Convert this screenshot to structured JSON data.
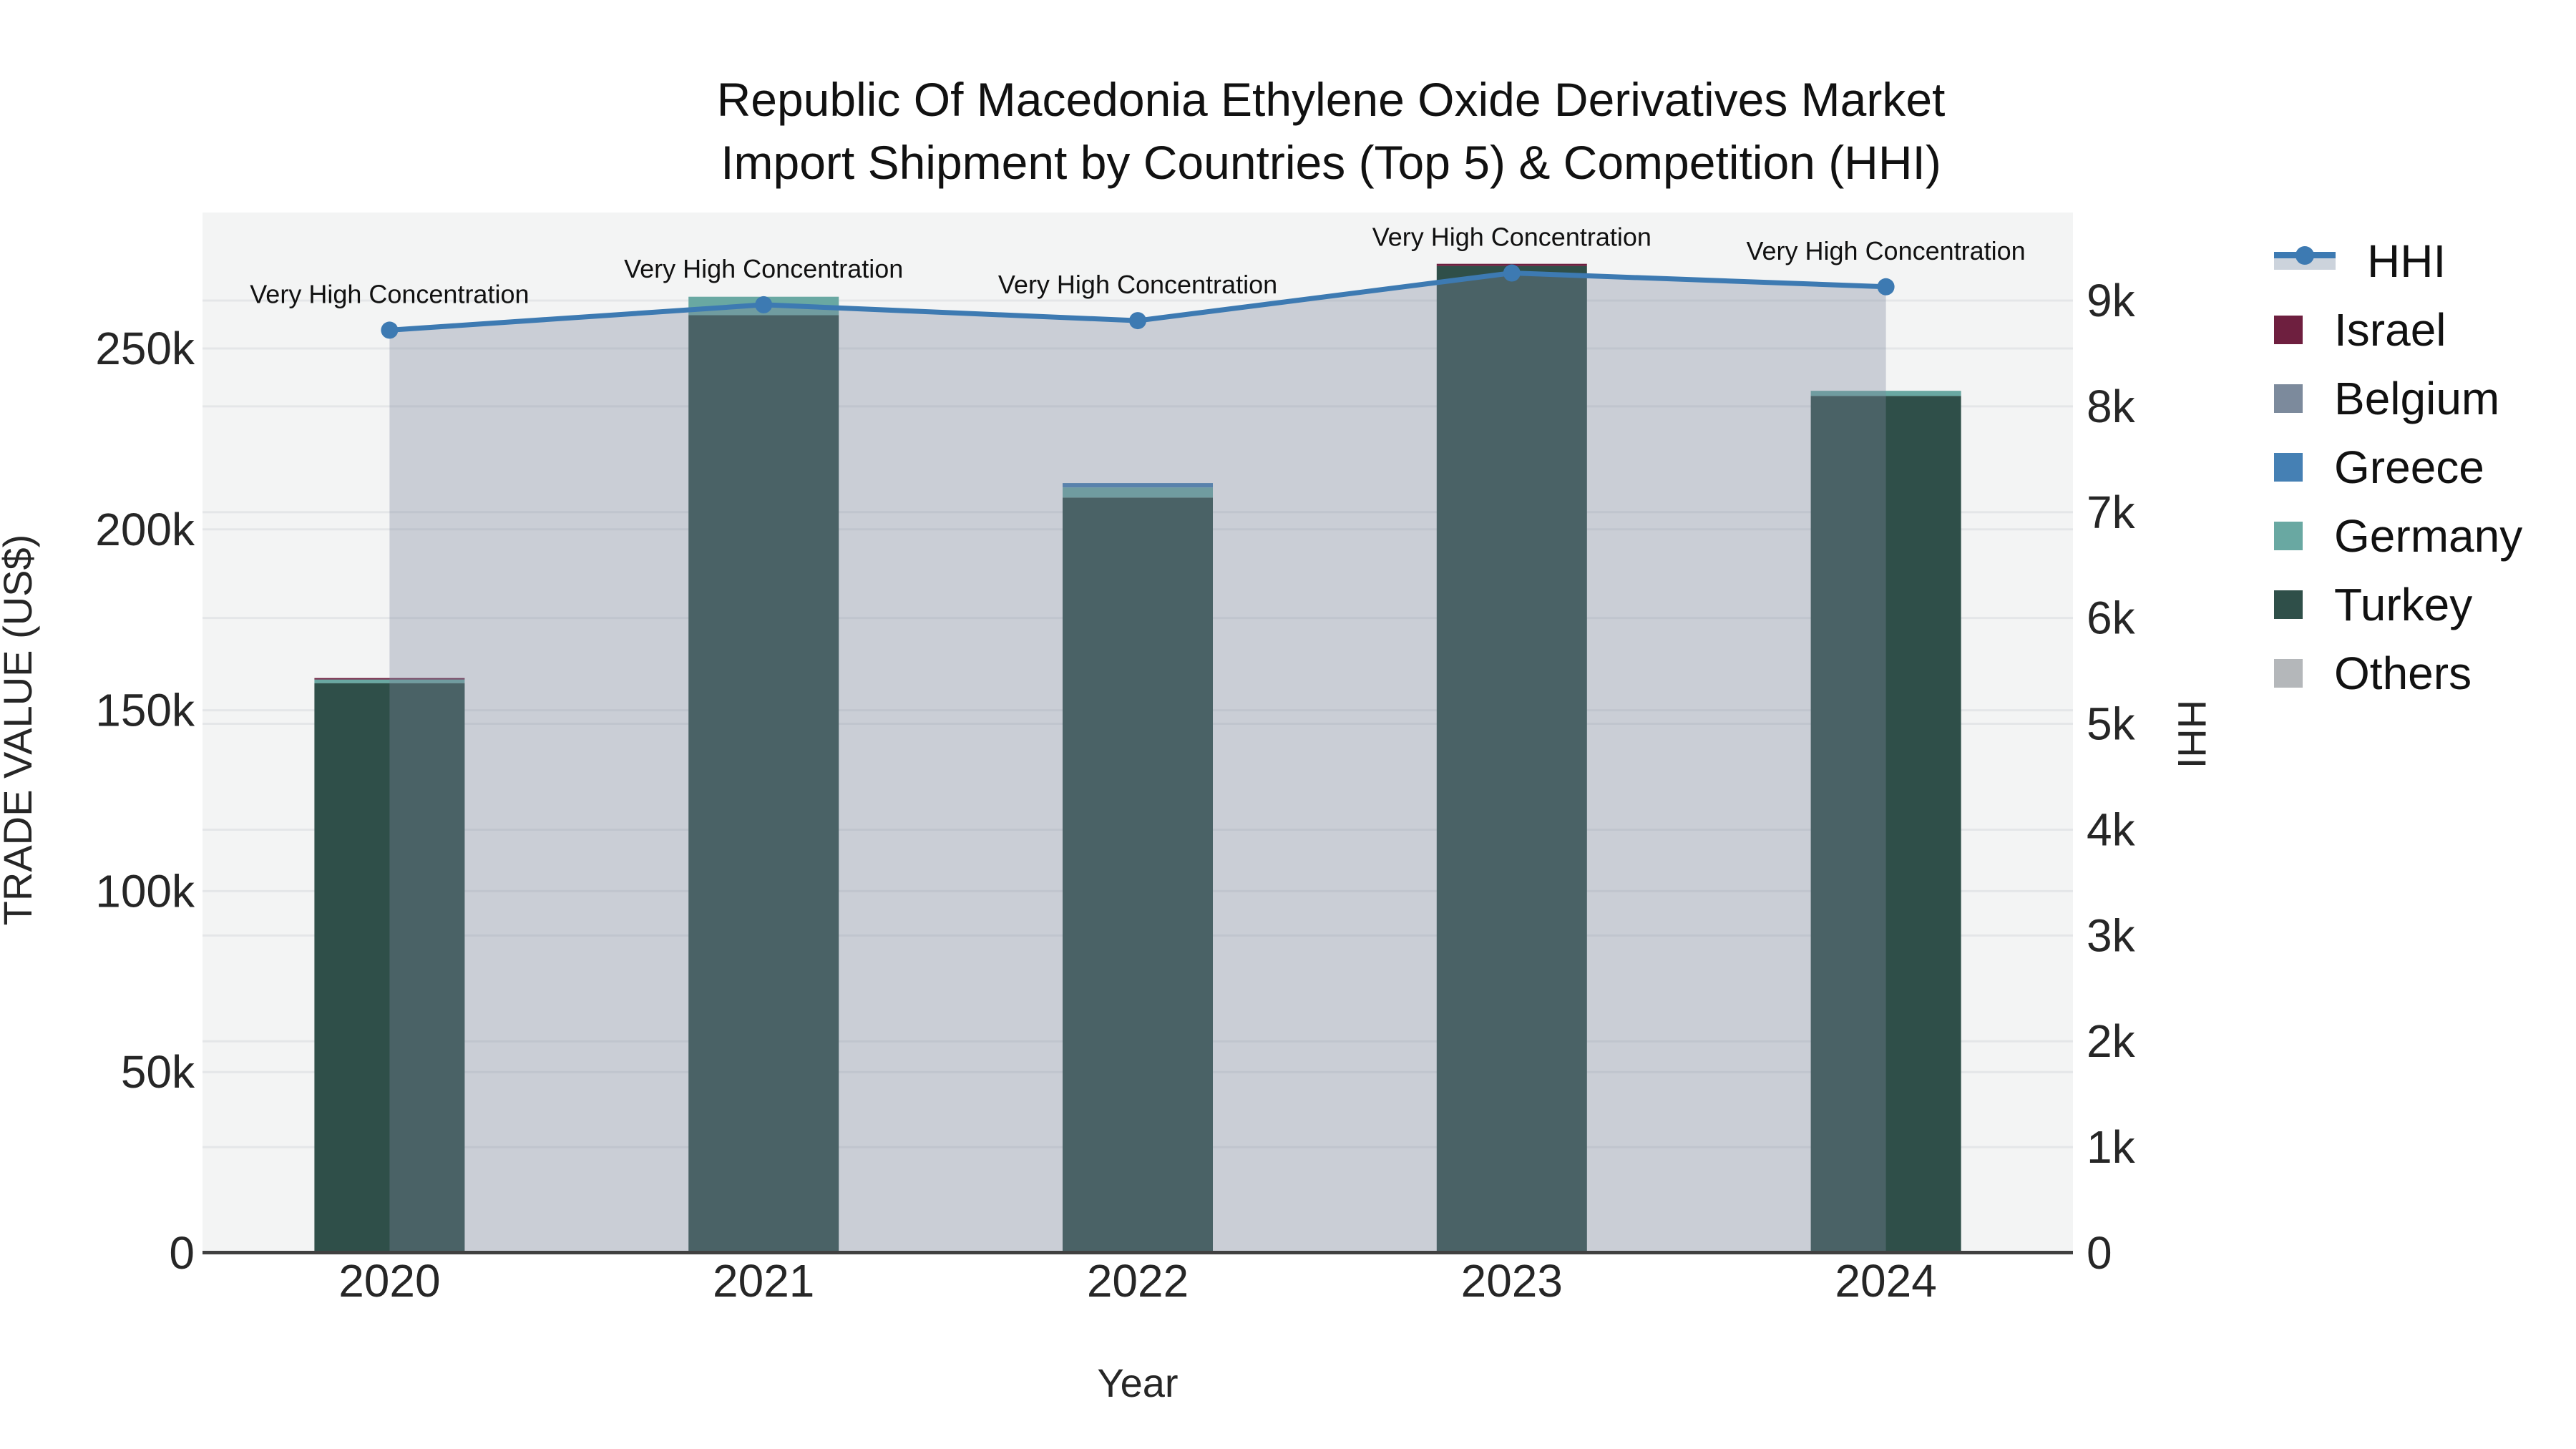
{
  "title": {
    "line1": "Republic Of Macedonia Ethylene Oxide Derivatives Market",
    "line2": "Import Shipment by Countries (Top 5) & Competition (HHI)"
  },
  "axes": {
    "x": {
      "title": "Year",
      "categories": [
        "2020",
        "2021",
        "2022",
        "2023",
        "2024"
      ]
    },
    "y_left": {
      "title": "TRADE VALUE (US$)",
      "ticks": [
        "0",
        "50k",
        "100k",
        "150k",
        "200k",
        "250k"
      ],
      "max": 250000
    },
    "y_right": {
      "title": "HHI",
      "ticks": [
        "0",
        "1k",
        "2k",
        "3k",
        "4k",
        "5k",
        "6k",
        "7k",
        "8k",
        "9k"
      ],
      "max": 9000
    }
  },
  "legend": {
    "items": [
      {
        "label": "HHI",
        "type": "line"
      },
      {
        "label": "Israel",
        "color": "#6e1f3f"
      },
      {
        "label": "Belgium",
        "color": "#7c8a9c"
      },
      {
        "label": "Greece",
        "color": "#4580b4"
      },
      {
        "label": "Germany",
        "color": "#69a8a2"
      },
      {
        "label": "Turkey",
        "color": "#2f4f49"
      },
      {
        "label": "Others",
        "color": "#b4b7ba"
      }
    ]
  },
  "annotations": [
    {
      "year": "2020",
      "text": "Very High Concentration"
    },
    {
      "year": "2021",
      "text": "Very High Concentration"
    },
    {
      "year": "2022",
      "text": "Very High Concentration"
    },
    {
      "year": "2023",
      "text": "Very High Concentration"
    },
    {
      "year": "2024",
      "text": "Very High Concentration"
    }
  ],
  "chart_data": {
    "type": "bar",
    "subtype": "stacked-bars-with-line-overlay",
    "title": "Republic Of Macedonia Ethylene Oxide Derivatives Market Import Shipment by Countries (Top 5) & Competition (HHI)",
    "xlabel": "Year",
    "ylabel_left": "TRADE VALUE (US$)",
    "ylabel_right": "HHI",
    "categories": [
      "2020",
      "2021",
      "2022",
      "2023",
      "2024"
    ],
    "stack_order_bottom_to_top": [
      "Turkey",
      "Germany",
      "Greece",
      "Belgium",
      "Israel",
      "Others"
    ],
    "series": [
      {
        "name": "Israel",
        "axis": "left",
        "values": [
          400,
          0,
          0,
          600,
          0
        ]
      },
      {
        "name": "Belgium",
        "axis": "left",
        "values": [
          0,
          0,
          0,
          0,
          0
        ]
      },
      {
        "name": "Greece",
        "axis": "left",
        "values": [
          0,
          0,
          1200,
          0,
          0
        ]
      },
      {
        "name": "Germany",
        "axis": "left",
        "values": [
          1000,
          5100,
          2800,
          0,
          1400
        ]
      },
      {
        "name": "Turkey",
        "axis": "left",
        "values": [
          157500,
          259200,
          208800,
          272800,
          236900
        ]
      },
      {
        "name": "Others",
        "axis": "left",
        "values": [
          0,
          0,
          0,
          0,
          0
        ]
      }
    ],
    "totals_left": [
      158900,
      264300,
      212800,
      273400,
      238300
    ],
    "line_series": {
      "name": "HHI",
      "axis": "right",
      "values": [
        8720,
        8960,
        8810,
        9260,
        9130
      ],
      "style": "line+markers+area-fill-to-zero"
    },
    "ylim_left": [
      0,
      250000
    ],
    "ylim_right": [
      0,
      9000
    ],
    "grid": true,
    "legend_position": "right"
  },
  "colors": {
    "israel": "#6e1f3f",
    "belgium": "#7c8a9c",
    "greece": "#4580b4",
    "germany": "#69a8a2",
    "turkey": "#2f4f49",
    "others": "#b4b7ba",
    "hhi_line": "#3d7ab2",
    "hhi_area_fill": "rgba(126,135,159,0.35)",
    "hhi_legend_band": "#ccd3dc",
    "plot_background": "#f3f4f4",
    "gridline": "#e4e6e8",
    "axis_line": "#404040",
    "tick_text": "#262626",
    "title_text": "#111111"
  }
}
